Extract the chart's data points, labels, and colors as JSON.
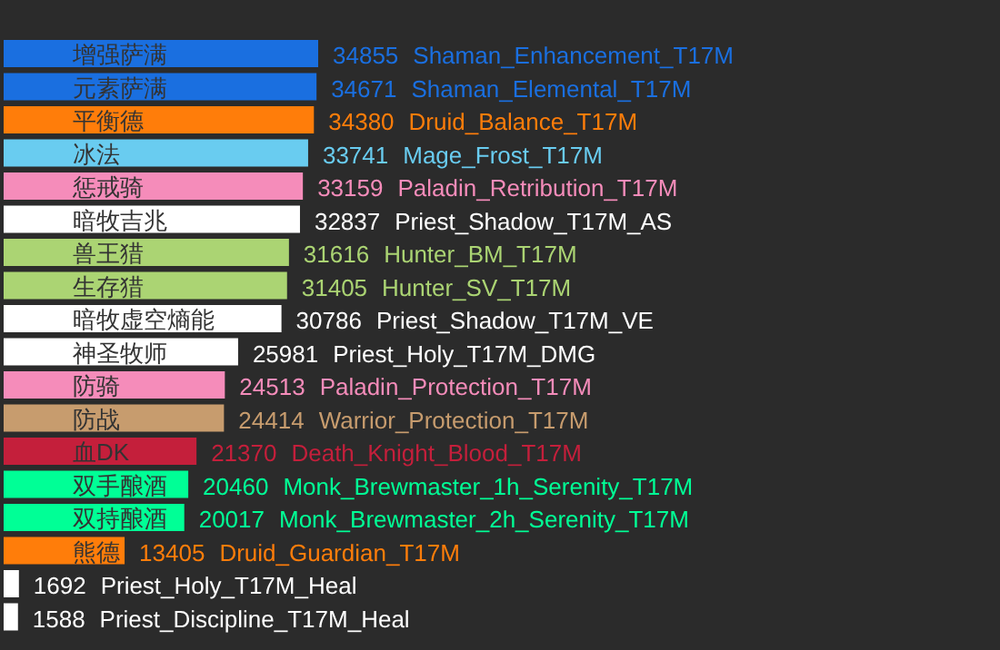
{
  "chart_data": {
    "type": "bar",
    "orientation": "horizontal",
    "categories": [
      "增强萨满",
      "元素萨满",
      "平衡德",
      "冰法",
      "惩戒骑",
      "暗牧吉兆",
      "兽王猎",
      "生存猎",
      "暗牧虚空熵能",
      "神圣牧师",
      "防骑",
      "防战",
      "血DK",
      "双手酿酒",
      "双持酿酒",
      "熊德",
      null,
      null
    ],
    "values": [
      34855,
      34671,
      34380,
      33741,
      33159,
      32837,
      31616,
      31405,
      30786,
      25981,
      24513,
      24414,
      21370,
      20460,
      20017,
      13405,
      1692,
      1588
    ],
    "colors": [
      "#1a6fe0",
      "#1a6fe0",
      "#ff7d0a",
      "#69ccf0",
      "#f58cba",
      "#ffffff",
      "#abd473",
      "#abd473",
      "#ffffff",
      "#ffffff",
      "#f58cba",
      "#c79c6e",
      "#c41f3b",
      "#00ff96",
      "#00ff96",
      "#ff7d0a",
      "#ffffff",
      "#ffffff"
    ],
    "data_labels": true,
    "annotations": [
      "Shaman_Enhancement_T17M",
      "Shaman_Elemental_T17M",
      "Druid_Balance_T17M",
      "Mage_Frost_T17M",
      "Paladin_Retribution_T17M",
      "Priest_Shadow_T17M_AS",
      "Hunter_BM_T17M",
      "Hunter_SV_T17M",
      "Priest_Shadow_T17M_VE",
      "Priest_Holy_T17M_DMG",
      "Paladin_Protection_T17M",
      "Warrior_Protection_T17M",
      "Death_Knight_Blood_T17M",
      "Monk_Brewmaster_1h_Serenity_T17M",
      "Monk_Brewmaster_2h_Serenity_T17M",
      "Druid_Guardian_T17M",
      "Priest_Holy_T17M_Heal",
      "Priest_Discipline_T17M_Heal"
    ]
  }
}
